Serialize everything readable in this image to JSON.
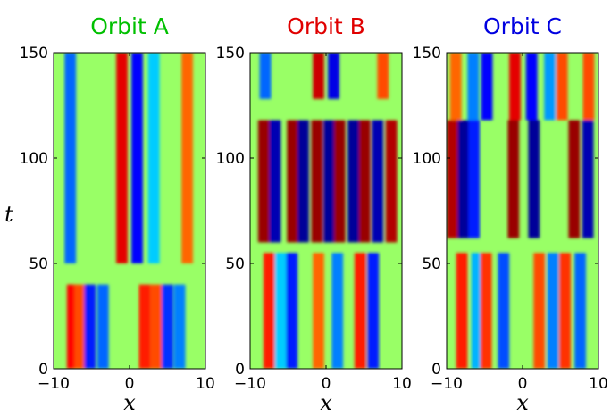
{
  "chart_data": [
    {
      "type": "heatmap",
      "title": "Orbit A",
      "title_color": "#00c000",
      "xlabel": "x",
      "ylabel": "t",
      "xlim": [
        -10,
        10
      ],
      "ylim": [
        0,
        150
      ],
      "xticks": [
        -10,
        0,
        10
      ],
      "yticks": [
        0,
        50,
        100,
        150
      ],
      "colormap": "jet",
      "structure": [
        {
          "t_range": [
            0,
            40
          ],
          "stripes": [
            {
              "x": -7.5,
              "v": 0.75
            },
            {
              "x": -6.5,
              "v": 0.6
            },
            {
              "x": -5.2,
              "v": -0.7
            },
            {
              "x": -3.5,
              "v": -0.55
            },
            {
              "x": 2.0,
              "v": 0.7
            },
            {
              "x": 3.5,
              "v": 0.6
            },
            {
              "x": 5.0,
              "v": -0.65
            },
            {
              "x": 6.6,
              "v": -0.5
            }
          ]
        },
        {
          "t_range": [
            50,
            150
          ],
          "stripes": [
            {
              "x": -7.8,
              "v": -0.55
            },
            {
              "x": -1.0,
              "v": 0.8
            },
            {
              "x": 1.0,
              "v": -0.75
            },
            {
              "x": 3.2,
              "v": -0.35
            },
            {
              "x": 7.6,
              "v": 0.55
            }
          ]
        }
      ]
    },
    {
      "type": "heatmap",
      "title": "Orbit B",
      "title_color": "#e00000",
      "xlabel": "x",
      "ylabel": "",
      "xlim": [
        -10,
        10
      ],
      "ylim": [
        0,
        150
      ],
      "xticks": [
        -10,
        0,
        10
      ],
      "yticks": [
        0,
        50,
        100,
        150
      ],
      "colormap": "jet",
      "structure": [
        {
          "t_range": [
            0,
            55
          ],
          "stripes": [
            {
              "x": -7.5,
              "v": 0.7
            },
            {
              "x": -6.0,
              "v": -0.35
            },
            {
              "x": -4.5,
              "v": -0.7
            },
            {
              "x": -1.0,
              "v": 0.55
            },
            {
              "x": 1.5,
              "v": -0.5
            },
            {
              "x": 4.5,
              "v": 0.7
            },
            {
              "x": 6.2,
              "v": -0.7
            }
          ]
        },
        {
          "t_range": [
            60,
            118
          ],
          "stripes": [
            {
              "x": -8.2,
              "v": 0.95
            },
            {
              "x": -6.7,
              "v": -0.9
            },
            {
              "x": -4.4,
              "v": 0.95
            },
            {
              "x": -3.0,
              "v": -0.95
            },
            {
              "x": -1.2,
              "v": 0.95
            },
            {
              "x": 0.4,
              "v": -0.95
            },
            {
              "x": 1.8,
              "v": 0.95
            },
            {
              "x": 3.6,
              "v": -0.95
            },
            {
              "x": 5.1,
              "v": 0.95
            },
            {
              "x": 6.8,
              "v": -0.9
            },
            {
              "x": 8.6,
              "v": 0.9
            }
          ]
        },
        {
          "t_range": [
            128,
            150
          ],
          "stripes": [
            {
              "x": -8.0,
              "v": -0.55
            },
            {
              "x": -1.0,
              "v": 0.85
            },
            {
              "x": 1.0,
              "v": -0.8
            },
            {
              "x": 7.5,
              "v": 0.6
            }
          ]
        }
      ]
    },
    {
      "type": "heatmap",
      "title": "Orbit C",
      "title_color": "#0000e0",
      "xlabel": "x",
      "ylabel": "",
      "xlim": [
        -10,
        10
      ],
      "ylim": [
        0,
        150
      ],
      "xticks": [
        -10,
        0,
        10
      ],
      "yticks": [
        0,
        50,
        100,
        150
      ],
      "colormap": "jet",
      "structure": [
        {
          "t_range": [
            0,
            55
          ],
          "stripes": [
            {
              "x": -8.0,
              "v": 0.7
            },
            {
              "x": -6.0,
              "v": -0.4
            },
            {
              "x": -4.8,
              "v": 0.65
            },
            {
              "x": -2.5,
              "v": -0.6
            },
            {
              "x": 2.2,
              "v": 0.6
            },
            {
              "x": 4.0,
              "v": -0.5
            },
            {
              "x": 5.6,
              "v": 0.65
            },
            {
              "x": 7.6,
              "v": -0.55
            }
          ]
        },
        {
          "t_range": [
            62,
            118
          ],
          "stripes": [
            {
              "x": -9.2,
              "v": 0.9
            },
            {
              "x": -7.8,
              "v": -0.95
            },
            {
              "x": -6.4,
              "v": -0.7
            },
            {
              "x": -1.2,
              "v": 0.95
            },
            {
              "x": 1.5,
              "v": -0.95
            },
            {
              "x": 6.8,
              "v": 0.95
            },
            {
              "x": 8.6,
              "v": -0.9
            }
          ]
        },
        {
          "t_range": [
            118,
            150
          ],
          "stripes": [
            {
              "x": -8.8,
              "v": 0.55
            },
            {
              "x": -6.5,
              "v": -0.5
            },
            {
              "x": -4.7,
              "v": -0.75
            },
            {
              "x": -1.0,
              "v": 0.8
            },
            {
              "x": 1.2,
              "v": -0.75
            },
            {
              "x": 3.6,
              "v": -0.45
            },
            {
              "x": 5.2,
              "v": 0.6
            },
            {
              "x": 8.7,
              "v": 0.6
            }
          ]
        }
      ]
    }
  ]
}
